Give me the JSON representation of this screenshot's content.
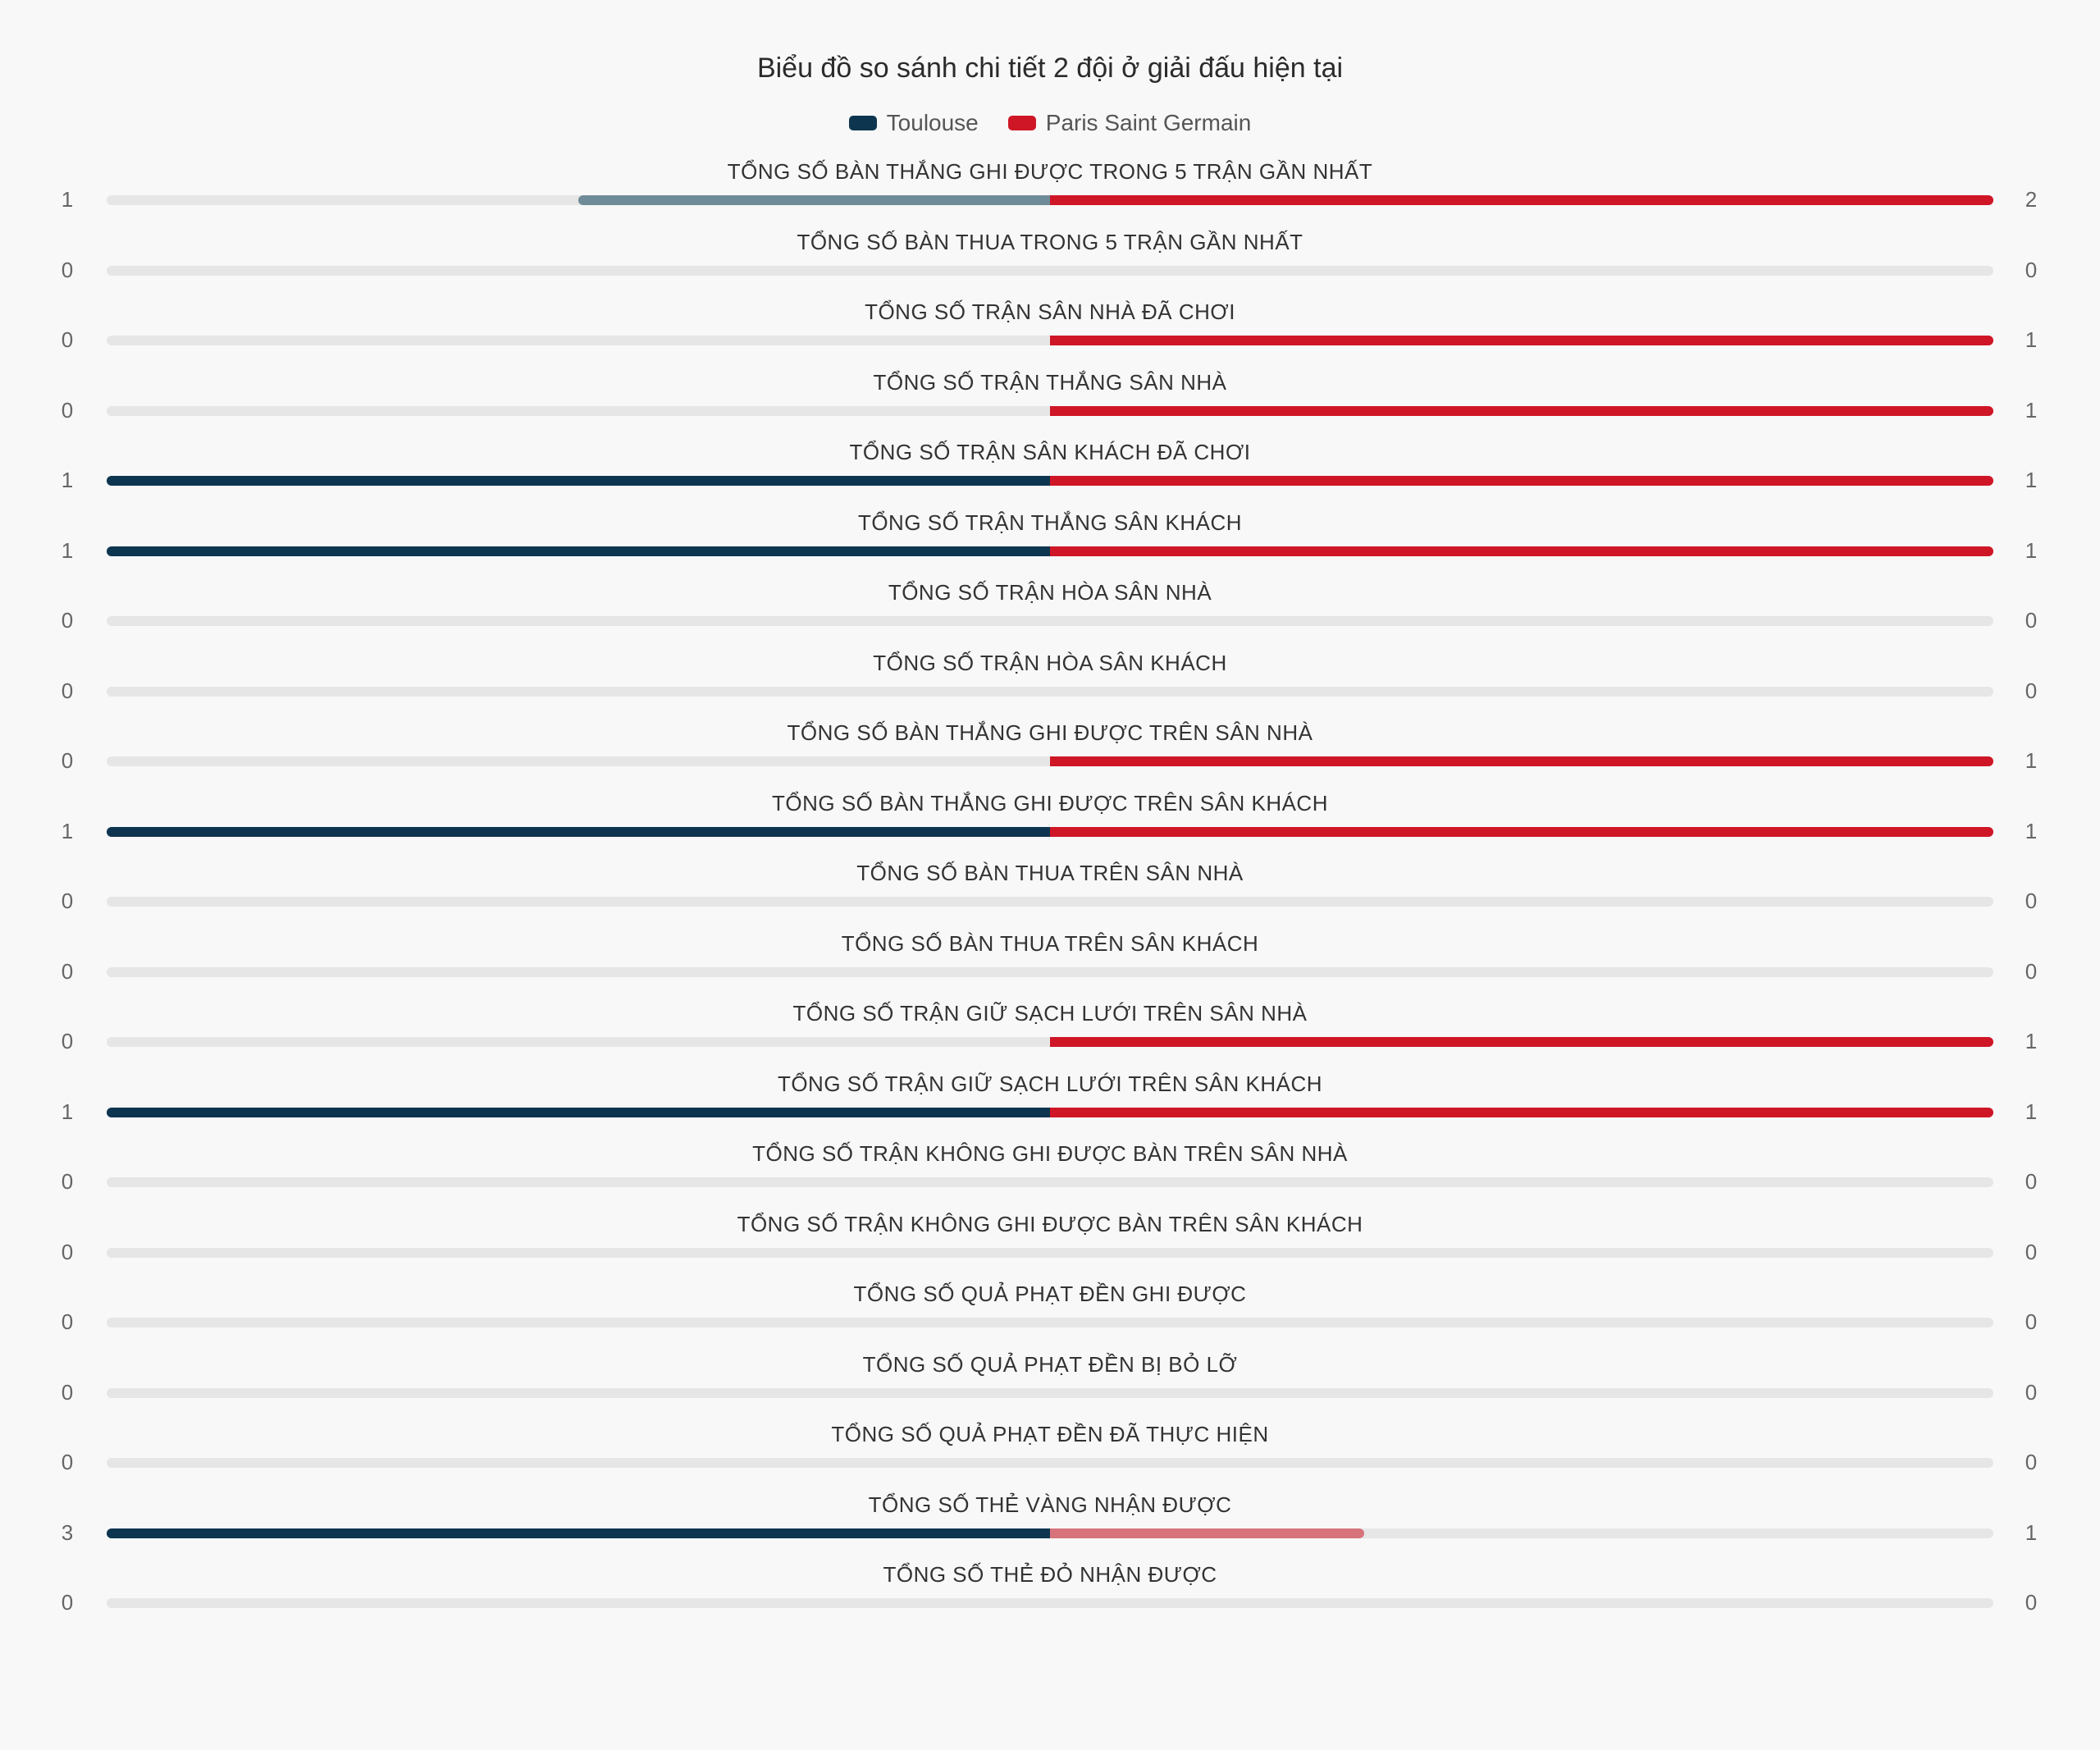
{
  "chart_data": {
    "type": "bar",
    "title": "Biểu đồ so sánh chi tiết 2 đội ở giải đấu hiện tại",
    "series": [
      {
        "name": "Toulouse",
        "color": "#0d3550",
        "values": [
          1,
          0,
          0,
          0,
          1,
          1,
          0,
          0,
          0,
          1,
          0,
          0,
          0,
          1,
          0,
          0,
          0,
          0,
          0,
          3,
          0
        ]
      },
      {
        "name": "Paris Saint Germain",
        "color": "#cf1626",
        "values": [
          2,
          0,
          1,
          1,
          1,
          1,
          0,
          0,
          1,
          1,
          0,
          0,
          1,
          1,
          0,
          0,
          0,
          0,
          0,
          1,
          0
        ]
      }
    ],
    "categories": [
      "TỔNG SỐ BÀN THẮNG GHI ĐƯỢC TRONG 5 TRẬN GẦN NHẤT",
      "TỔNG SỐ BÀN THUA TRONG 5 TRẬN GẦN NHẤT",
      "TỔNG SỐ TRẬN SÂN NHÀ ĐÃ CHƠI",
      "TỔNG SỐ TRẬN THẮNG SÂN NHÀ",
      "TỔNG SỐ TRẬN SÂN KHÁCH ĐÃ CHƠI",
      "TỔNG SỐ TRẬN THẮNG SÂN KHÁCH",
      "TỔNG SỐ TRẬN HÒA SÂN NHÀ",
      "TỔNG SỐ TRẬN HÒA SÂN KHÁCH",
      "TỔNG SỐ BÀN THẮNG GHI ĐƯỢC TRÊN SÂN NHÀ",
      "TỔNG SỐ BÀN THẮNG GHI ĐƯỢC TRÊN SÂN KHÁCH",
      "TỔNG SỐ BÀN THUA TRÊN SÂN NHÀ",
      "TỔNG SỐ BÀN THUA TRÊN SÂN KHÁCH",
      "TỔNG SỐ TRẬN GIỮ SẠCH LƯỚI TRÊN SÂN NHÀ",
      "TỔNG SỐ TRẬN GIỮ SẠCH LƯỚI TRÊN SÂN KHÁCH",
      "TỔNG SỐ TRẬN KHÔNG GHI ĐƯỢC BÀN TRÊN SÂN NHÀ",
      "TỔNG SỐ TRẬN KHÔNG GHI ĐƯỢC BÀN TRÊN SÂN KHÁCH",
      "TỔNG SỐ QUẢ PHẠT ĐỀN GHI ĐƯỢC",
      "TỔNG SỐ QUẢ PHẠT ĐỀN BỊ BỎ LỠ",
      "TỔNG SỐ QUẢ PHẠT ĐỀN ĐÃ THỰC HIỆN",
      "TỔNG SỐ THẺ VÀNG NHẬN ĐƯỢC",
      "TỔNG SỐ THẺ ĐỎ NHẬN ĐƯỢC"
    ],
    "legend_position": "top-center"
  },
  "colors": {
    "track": "#e6e6e6",
    "toulouse": "#0d3550",
    "toulouse_faded": "#708b98",
    "psg": "#cf1626",
    "psg_faded": "#d7737b"
  }
}
